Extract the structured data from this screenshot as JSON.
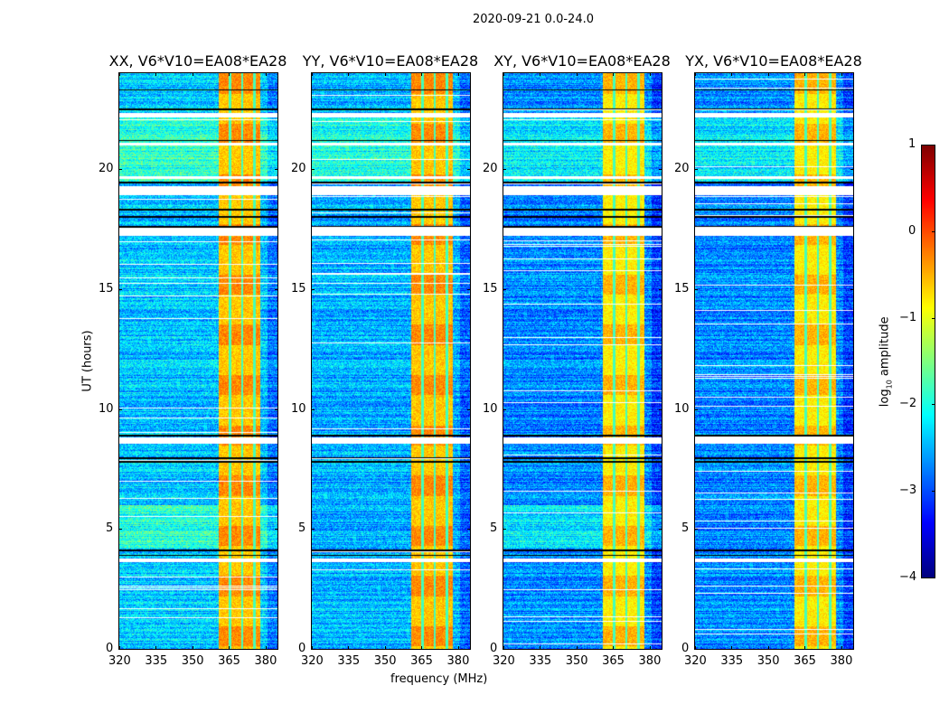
{
  "chart_data": {
    "type": "heatmap",
    "title": "2020-09-21 0.0-24.0",
    "xlabel": "frequency (MHz)",
    "ylabel": "UT (hours)",
    "xlim": [
      320,
      385
    ],
    "ylim": [
      0,
      24
    ],
    "xticks": [
      320,
      335,
      350,
      365,
      380
    ],
    "yticks": [
      0,
      5,
      10,
      15,
      20
    ],
    "panels": [
      {
        "title": "XX, V6*V10=EA08*EA28",
        "background_level": -2.4,
        "band_level": -0.6
      },
      {
        "title": "YY, V6*V10=EA08*EA28",
        "background_level": -2.5,
        "band_level": -0.6
      },
      {
        "title": "XY, V6*V10=EA08*EA28",
        "background_level": -2.7,
        "band_level": -0.8
      },
      {
        "title": "YX, V6*V10=EA08*EA28",
        "background_level": -2.7,
        "band_level": -0.8
      }
    ],
    "rfi_band_mhz": [
      361,
      378
    ],
    "band_gaps_mhz": [
      365.5,
      370.5,
      375.5
    ],
    "flagged_white_hours": [
      [
        3.6,
        3.75
      ],
      [
        8.55,
        8.8
      ],
      [
        17.2,
        17.55
      ],
      [
        18.9,
        19.3
      ],
      [
        22.15,
        22.35
      ],
      [
        21.0,
        21.1
      ],
      [
        19.6,
        19.7
      ]
    ],
    "flagged_black_hours": [
      3.9,
      4.1,
      7.8,
      7.95,
      8.9,
      17.6,
      18.0,
      18.3,
      19.45,
      21.2,
      22.5,
      23.3
    ],
    "colorbar": {
      "label": "log10 amplitude",
      "label_main": "log",
      "label_sub": "10",
      "label_rest": " amplitude",
      "range": [
        -4,
        1
      ],
      "ticks": [
        "1",
        "0",
        "−1",
        "−2",
        "−3",
        "−4"
      ],
      "tick_values": [
        1,
        0,
        -1,
        -2,
        -3,
        -4
      ],
      "colormap": "jet"
    }
  }
}
